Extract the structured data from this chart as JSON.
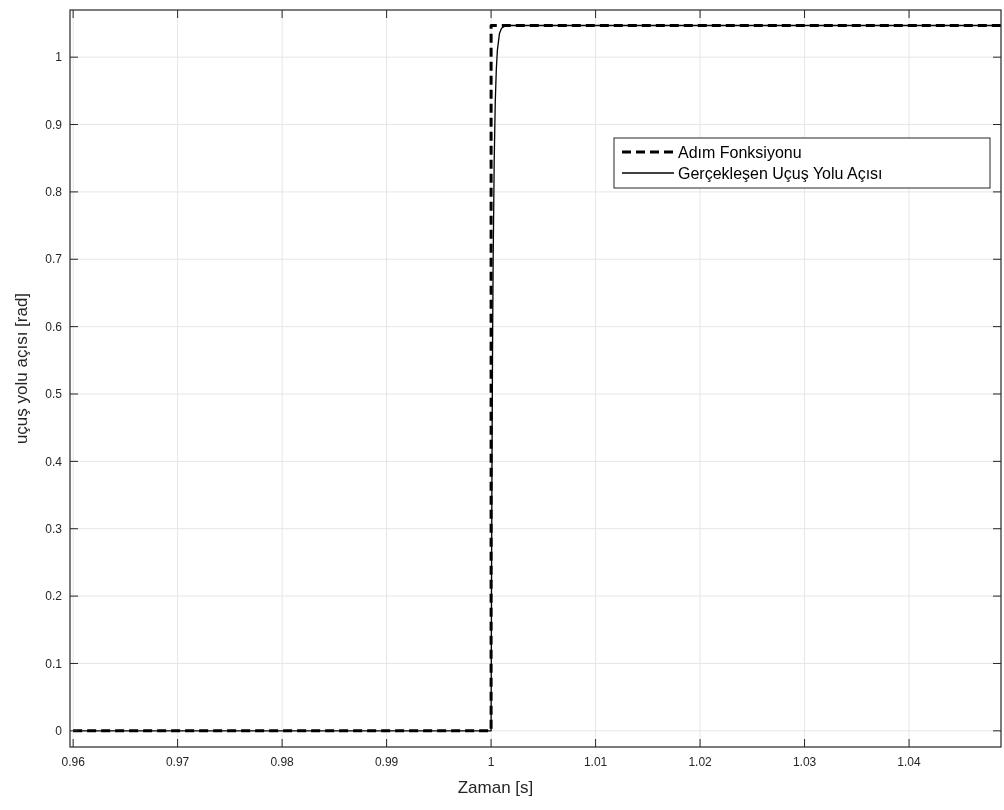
{
  "chart_data": {
    "type": "line",
    "xlabel": "Zaman [s]",
    "ylabel": "uçuş yolu açısı [rad]",
    "xlim": [
      0.9597,
      1.0488
    ],
    "ylim": [
      -0.024,
      1.07
    ],
    "xticks": [
      0.96,
      0.97,
      0.98,
      0.99,
      1,
      1.01,
      1.02,
      1.03,
      1.04
    ],
    "yticks": [
      0,
      0.1,
      0.2,
      0.3,
      0.4,
      0.5,
      0.6,
      0.7,
      0.8,
      0.9,
      1
    ],
    "grid": true,
    "legend": "top right",
    "series": [
      {
        "name": "Adım Fonksiyonu",
        "color": "#000000",
        "line_style": "dashed",
        "x": [
          0.96,
          1,
          1,
          1.0488
        ],
        "values": [
          0,
          0,
          1.047,
          1.047
        ]
      },
      {
        "name": "Gerçekleşen Uçuş Yolu Açısı",
        "color": "#000000",
        "line_style": "solid",
        "x": [
          0.96,
          1,
          1.00005,
          1.0001,
          1.00015,
          1.0002,
          1.0003,
          1.0004,
          1.0005,
          1.0006,
          1.0008,
          1.001,
          1.0013,
          1.0017,
          1.0488
        ],
        "values": [
          0,
          0,
          0.254,
          0.446,
          0.592,
          0.703,
          0.849,
          0.934,
          0.982,
          1.01,
          1.035,
          1.043,
          1.046,
          1.047,
          1.047
        ]
      }
    ]
  }
}
